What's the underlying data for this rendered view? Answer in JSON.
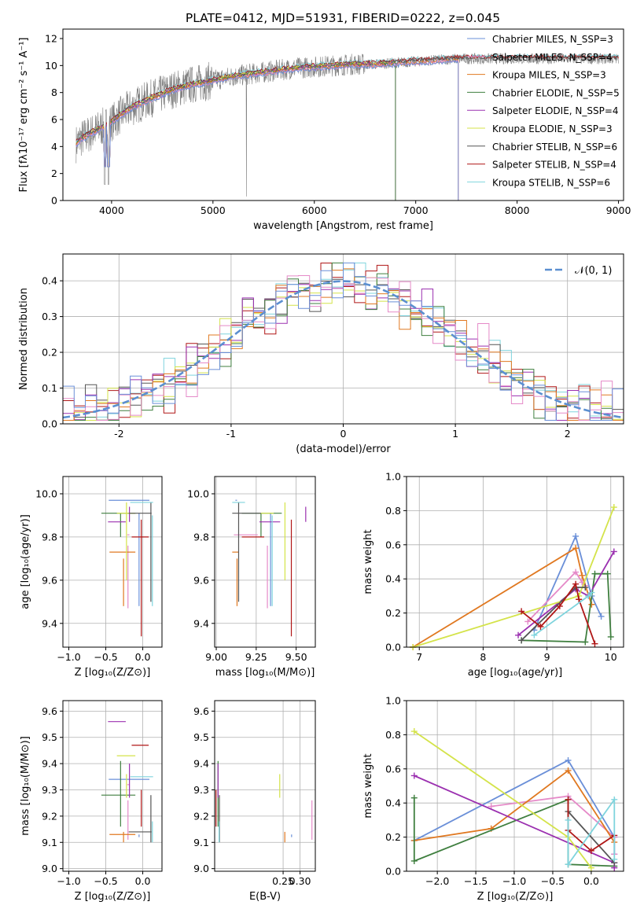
{
  "title": "PLATE=0412, MJD=51931, FIBERID=0222, z=0.045",
  "colors": [
    "#6a8fd8",
    "#e58ac8",
    "#e07820",
    "#3f7f3f",
    "#9b30b0",
    "#d4e34a",
    "#555555",
    "#b01717",
    "#7fd4dd"
  ],
  "chart_data": [
    {
      "id": "spectrum",
      "type": "line",
      "xlabel": "wavelength [Angstrom, rest frame]",
      "ylabel": "Flux [fλ10⁻¹⁷ erg cm⁻² s⁻¹ A⁻¹]",
      "xlim": [
        3520,
        9050
      ],
      "ylim": [
        0,
        12.7
      ],
      "xticks": [
        4000,
        5000,
        6000,
        7000,
        8000,
        9000
      ],
      "yticks": [
        0,
        2,
        4,
        6,
        8,
        10,
        12
      ],
      "grid": false,
      "legend": "top-right",
      "series_labels": [
        "Chabrier MILES, N_SSP=3",
        "Salpeter MILES, N_SSP=4",
        "Kroupa MILES, N_SSP=3",
        "Chabrier ELODIE, N_SSP=5",
        "Salpeter ELODIE, N_SSP=4",
        "Kroupa ELODIE, N_SSP=3",
        "Chabrier STELIB, N_SSP=6",
        "Salpeter STELIB, N_SSP=4",
        "Kroupa STELIB, N_SSP=6"
      ],
      "continuum_x": [
        3650,
        3700,
        3800,
        3900,
        4000,
        4100,
        4200,
        4400,
        4600,
        4800,
        5000,
        5200,
        5400,
        5600,
        5800,
        6000,
        6200,
        6400,
        6600,
        6800,
        7000,
        7200,
        7400
      ],
      "continuum_y": [
        4.2,
        4.6,
        5.0,
        5.4,
        5.8,
        6.4,
        6.9,
        7.6,
        8.2,
        8.6,
        8.9,
        9.2,
        9.4,
        9.6,
        9.8,
        9.9,
        10.0,
        10.1,
        10.1,
        10.2,
        10.3,
        10.4,
        10.5
      ],
      "observed_x": [
        3650,
        9000
      ],
      "model_end_x": {
        "MILES": 7420,
        "ELODIE": 6800,
        "STELIB": 9000
      }
    },
    {
      "id": "residuals",
      "type": "bar",
      "xlabel": "(data-model)/error",
      "ylabel": "Normed distribution",
      "xlim": [
        -2.5,
        2.5
      ],
      "ylim": [
        0,
        0.475
      ],
      "xticks": [
        -2,
        -1,
        0,
        1,
        2
      ],
      "yticks": [
        0.0,
        0.1,
        0.2,
        0.3,
        0.4
      ],
      "grid": true,
      "legend": "top-right",
      "normal_label": "𝒩(0, 1)",
      "bin_width": 0.1
    },
    {
      "id": "age-vs-Z",
      "type": "scatter",
      "xlabel": "Z [log₁₀(Z/Z⊙)]",
      "ylabel": "age  [log₁₀(age/yr)]",
      "xlim": [
        -1.08,
        0.26
      ],
      "ylim": [
        9.29,
        10.08
      ],
      "xticks": [
        -1.0,
        -0.5,
        0.0
      ],
      "xtick_labels": [
        "−1.0",
        "−0.5",
        "0.0"
      ],
      "yticks": [
        9.4,
        9.6,
        9.8,
        10.0
      ],
      "grid": true
    },
    {
      "id": "age-vs-mass",
      "type": "scatter",
      "xlabel": "mass [log₁₀(M/M⊙)]",
      "xlim": [
        8.99,
        9.62
      ],
      "ylim": [
        9.29,
        10.08
      ],
      "xticks": [
        9.0,
        9.25,
        9.5
      ],
      "xtick_labels": [
        "9.00",
        "9.25",
        "9.50"
      ],
      "yticks": [
        9.4,
        9.6,
        9.8,
        10.0
      ],
      "grid": true
    },
    {
      "id": "weight-vs-age",
      "type": "line",
      "xlabel": "age  [log₁₀(age/yr)]",
      "ylabel": "mass weight",
      "xlim": [
        6.8,
        10.2
      ],
      "ylim": [
        0,
        1
      ],
      "xticks": [
        7,
        8,
        9,
        10
      ],
      "yticks": [
        0.0,
        0.2,
        0.4,
        0.6,
        0.8,
        1.0
      ],
      "grid": true
    },
    {
      "id": "mass-vs-Z",
      "type": "scatter",
      "xlabel": "Z [log₁₀(Z/Z⊙)]",
      "ylabel": "mass [log₁₀(M/M⊙)]",
      "xlim": [
        -1.08,
        0.26
      ],
      "ylim": [
        8.99,
        9.64
      ],
      "xticks": [
        -1.0,
        -0.5,
        0.0
      ],
      "xtick_labels": [
        "−1.0",
        "−0.5",
        "0.0"
      ],
      "yticks": [
        9.0,
        9.1,
        9.2,
        9.3,
        9.4,
        9.5,
        9.6
      ],
      "grid": true
    },
    {
      "id": "mass-vs-EBV",
      "type": "scatter",
      "xlabel": "E(B-V)",
      "xlim": [
        0.048,
        0.345
      ],
      "ylim": [
        8.99,
        9.64
      ],
      "xticks": [
        0.25,
        0.3
      ],
      "xtick_labels": [
        "0.25",
        "0.30"
      ],
      "yticks": [
        9.0,
        9.1,
        9.2,
        9.3,
        9.4,
        9.5,
        9.6
      ],
      "grid": true
    },
    {
      "id": "weight-vs-Z",
      "type": "line",
      "xlabel": "Z [log₁₀(Z/Z⊙)]",
      "ylabel": "mass weight",
      "xlim": [
        -2.4,
        0.42
      ],
      "ylim": [
        0,
        1
      ],
      "xticks": [
        -2.0,
        -1.5,
        -1.0,
        -0.5,
        0.0
      ],
      "xtick_labels": [
        "−2.0",
        "−1.5",
        "−1.0",
        "−0.5",
        "0.0"
      ],
      "yticks": [
        0.0,
        0.2,
        0.4,
        0.6,
        0.8,
        1.0
      ],
      "grid": true
    }
  ],
  "fits": [
    {
      "Z": [
        -0.46,
        -0.05,
        0.09
      ],
      "age": [
        9.48,
        9.97,
        9.91
      ],
      "mass": [
        9.13,
        9.34,
        9.12
      ],
      "ebv": 0.275,
      "wAge": [
        [
          8.8,
          0.1
        ],
        [
          9.45,
          0.65
        ],
        [
          9.7,
          0.3
        ],
        [
          9.85,
          0.18
        ]
      ],
      "wZ": [
        [
          -2.3,
          0.18
        ],
        [
          -0.3,
          0.65
        ],
        [
          0.3,
          0.2
        ],
        [
          0.3,
          0.1
        ]
      ]
    },
    {
      "Z": [
        -0.21,
        -0.2,
        -0.18
      ],
      "age": [
        9.47,
        9.81,
        9.76
      ],
      "mass": [
        9.26,
        9.32,
        9.11
      ],
      "ebv": 0.335,
      "wAge": [
        [
          8.7,
          0.15
        ],
        [
          9.45,
          0.44
        ],
        [
          9.55,
          0.38
        ],
        [
          9.6,
          0.36
        ]
      ],
      "wZ": [
        [
          -1.3,
          0.38
        ],
        [
          -0.3,
          0.44
        ],
        [
          0.3,
          0.2
        ],
        [
          0.3,
          0.1
        ]
      ]
    },
    {
      "Z": [
        -0.45,
        -0.26,
        -0.1
      ],
      "age": [
        9.48,
        9.73,
        9.7
      ],
      "mass": [
        9.14,
        9.13,
        9.1
      ],
      "ebv": 0.255,
      "wAge": [
        [
          6.9,
          0.0
        ],
        [
          9.45,
          0.58
        ],
        [
          9.55,
          0.42
        ],
        [
          9.7,
          0.25
        ]
      ],
      "wZ": [
        [
          -2.3,
          0.18
        ],
        [
          -1.3,
          0.25
        ],
        [
          -0.3,
          0.59
        ],
        [
          0.3,
          0.17
        ]
      ]
    },
    {
      "Z": [
        -0.56,
        -0.3,
        -0.1
      ],
      "age": [
        9.91,
        9.91,
        9.8
      ],
      "mass": [
        9.41,
        9.28,
        9.16
      ],
      "ebv": 0.058,
      "wAge": [
        [
          8.6,
          0.04
        ],
        [
          9.6,
          0.03
        ],
        [
          9.75,
          0.43
        ],
        [
          9.95,
          0.43
        ],
        [
          10.0,
          0.06
        ]
      ],
      "wZ": [
        [
          -2.3,
          0.43
        ],
        [
          -2.3,
          0.06
        ],
        [
          -0.3,
          0.42
        ],
        [
          -0.3,
          0.04
        ],
        [
          0.3,
          0.03
        ]
      ]
    },
    {
      "Z": [
        -0.47,
        -0.18,
        -0.23
      ],
      "age": [
        9.87,
        9.87,
        9.94
      ],
      "mass": [
        9.4,
        9.56,
        9.27
      ],
      "ebv": 0.058,
      "wAge": [
        [
          8.55,
          0.07
        ],
        [
          9.45,
          0.34
        ],
        [
          9.65,
          0.3
        ],
        [
          10.05,
          0.56
        ]
      ],
      "wZ": [
        [
          -2.3,
          0.56
        ],
        [
          0.3,
          0.05
        ],
        [
          0.3,
          0.02
        ]
      ]
    },
    {
      "Z": [
        -0.35,
        -0.22,
        -0.1
      ],
      "age": [
        9.96,
        9.91,
        9.6
      ],
      "mass": [
        9.27,
        9.43,
        9.36
      ],
      "ebv": 0.24,
      "wAge": [
        [
          6.9,
          0.0
        ],
        [
          9.5,
          0.3
        ],
        [
          10.05,
          0.82
        ]
      ],
      "wZ": [
        [
          -2.3,
          0.82
        ],
        [
          -0.3,
          0.2
        ],
        [
          0.0,
          0.02
        ]
      ]
    },
    {
      "Z": [
        -0.19,
        0.11,
        0.12
      ],
      "age": [
        9.5,
        9.91,
        9.96
      ],
      "mass": [
        9.28,
        9.14,
        9.1
      ],
      "ebv": 0.062,
      "wAge": [
        [
          8.6,
          0.04
        ],
        [
          9.45,
          0.35
        ],
        [
          9.6,
          0.35
        ]
      ],
      "wZ": [
        [
          -0.3,
          0.35
        ],
        [
          0.3,
          0.05
        ]
      ]
    },
    {
      "Z": [
        -0.15,
        -0.02,
        0.08
      ],
      "age": [
        9.34,
        9.8,
        9.88
      ],
      "mass": [
        9.3,
        9.47,
        9.16
      ],
      "ebv": 0.052,
      "wAge": [
        [
          8.6,
          0.21
        ],
        [
          8.9,
          0.12
        ],
        [
          9.2,
          0.24
        ],
        [
          9.45,
          0.37
        ],
        [
          9.5,
          0.28
        ],
        [
          9.75,
          0.02
        ]
      ],
      "wZ": [
        [
          -0.3,
          0.42
        ],
        [
          -0.3,
          0.24
        ],
        [
          0.0,
          0.12
        ],
        [
          0.3,
          0.21
        ]
      ]
    },
    {
      "Z": [
        -0.17,
        0.13,
        0.14
      ],
      "age": [
        9.48,
        9.96,
        9.9
      ],
      "mass": [
        9.18,
        9.35,
        9.1
      ],
      "ebv": 0.061,
      "wAge": [
        [
          8.8,
          0.07
        ],
        [
          9.65,
          0.3
        ],
        [
          9.7,
          0.32
        ]
      ],
      "wZ": [
        [
          -0.3,
          0.3
        ],
        [
          -0.3,
          0.04
        ],
        [
          0.3,
          0.42
        ],
        [
          0.3,
          0.07
        ]
      ]
    }
  ]
}
